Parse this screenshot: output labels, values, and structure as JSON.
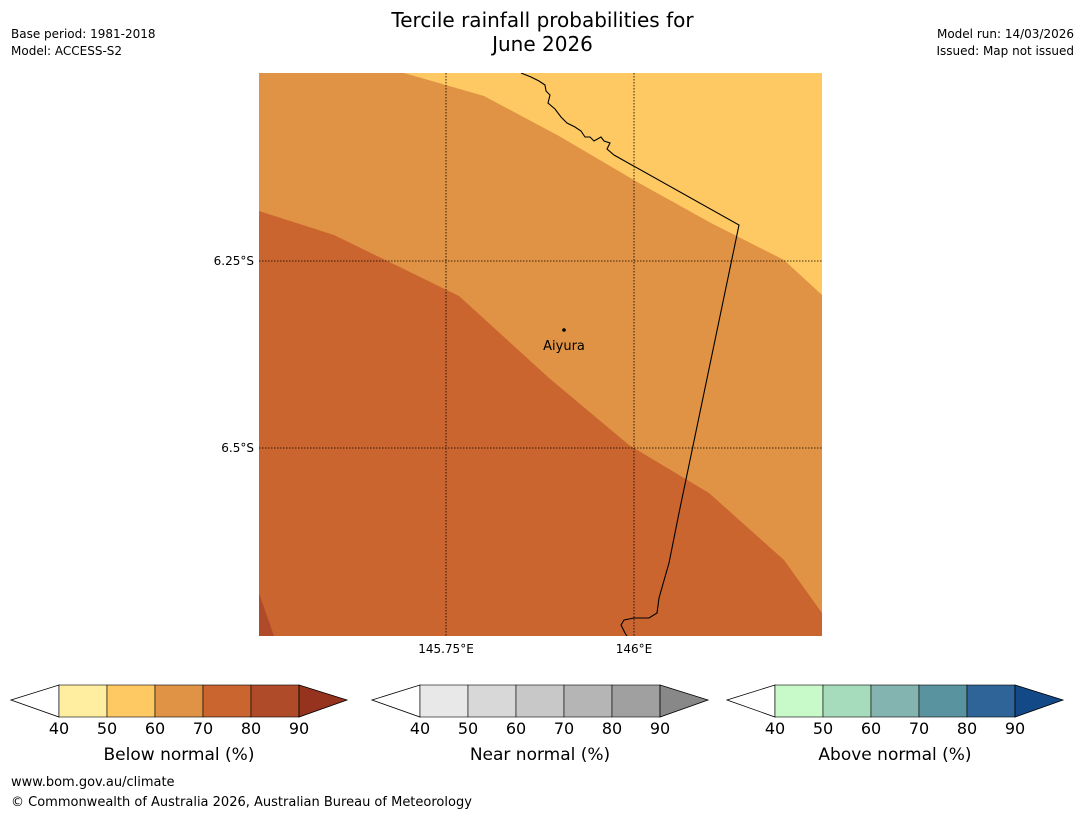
{
  "header": {
    "title_line1": "Tercile rainfall probabilities for",
    "title_line2": "June 2026",
    "base_period": "Base period: 1981-2018",
    "model": "Model: ACCESS-S2",
    "model_run": "Model run: 14/03/2026",
    "issued": "Issued: Map not issued"
  },
  "map": {
    "lat_labels": [
      "6.25°S",
      "6.5°S"
    ],
    "lon_labels": [
      "145.75°E",
      "146°E"
    ],
    "place": "Aiyura",
    "colors": {
      "b40_50": "#ffeda0",
      "b50_60": "#fec962",
      "b60_70": "#e09344",
      "b70_80": "#cb6530",
      "b80_90": "#b04b2a"
    }
  },
  "legends": [
    {
      "caption": "Below normal (%)",
      "ticks": [
        "40",
        "50",
        "60",
        "70",
        "80",
        "90"
      ],
      "colors": [
        "#ffeda0",
        "#fec962",
        "#e09344",
        "#cb6530",
        "#b04b2a"
      ],
      "over_color": "#96331e"
    },
    {
      "caption": "Near normal (%)",
      "ticks": [
        "40",
        "50",
        "60",
        "70",
        "80",
        "90"
      ],
      "colors": [
        "#e8e8e8",
        "#d8d8d8",
        "#c8c8c8",
        "#b5b5b5",
        "#a0a0a0"
      ],
      "over_color": "#888888"
    },
    {
      "caption": "Above normal (%)",
      "ticks": [
        "40",
        "50",
        "60",
        "70",
        "80",
        "90"
      ],
      "colors": [
        "#c8f9c8",
        "#a6dbbb",
        "#84b4b0",
        "#5a93a0",
        "#2e6497"
      ],
      "over_color": "#134986"
    }
  ],
  "footer": {
    "url": "www.bom.gov.au/climate",
    "copyright": "© Commonwealth of Australia 2026, Australian Bureau of Meteorology"
  }
}
